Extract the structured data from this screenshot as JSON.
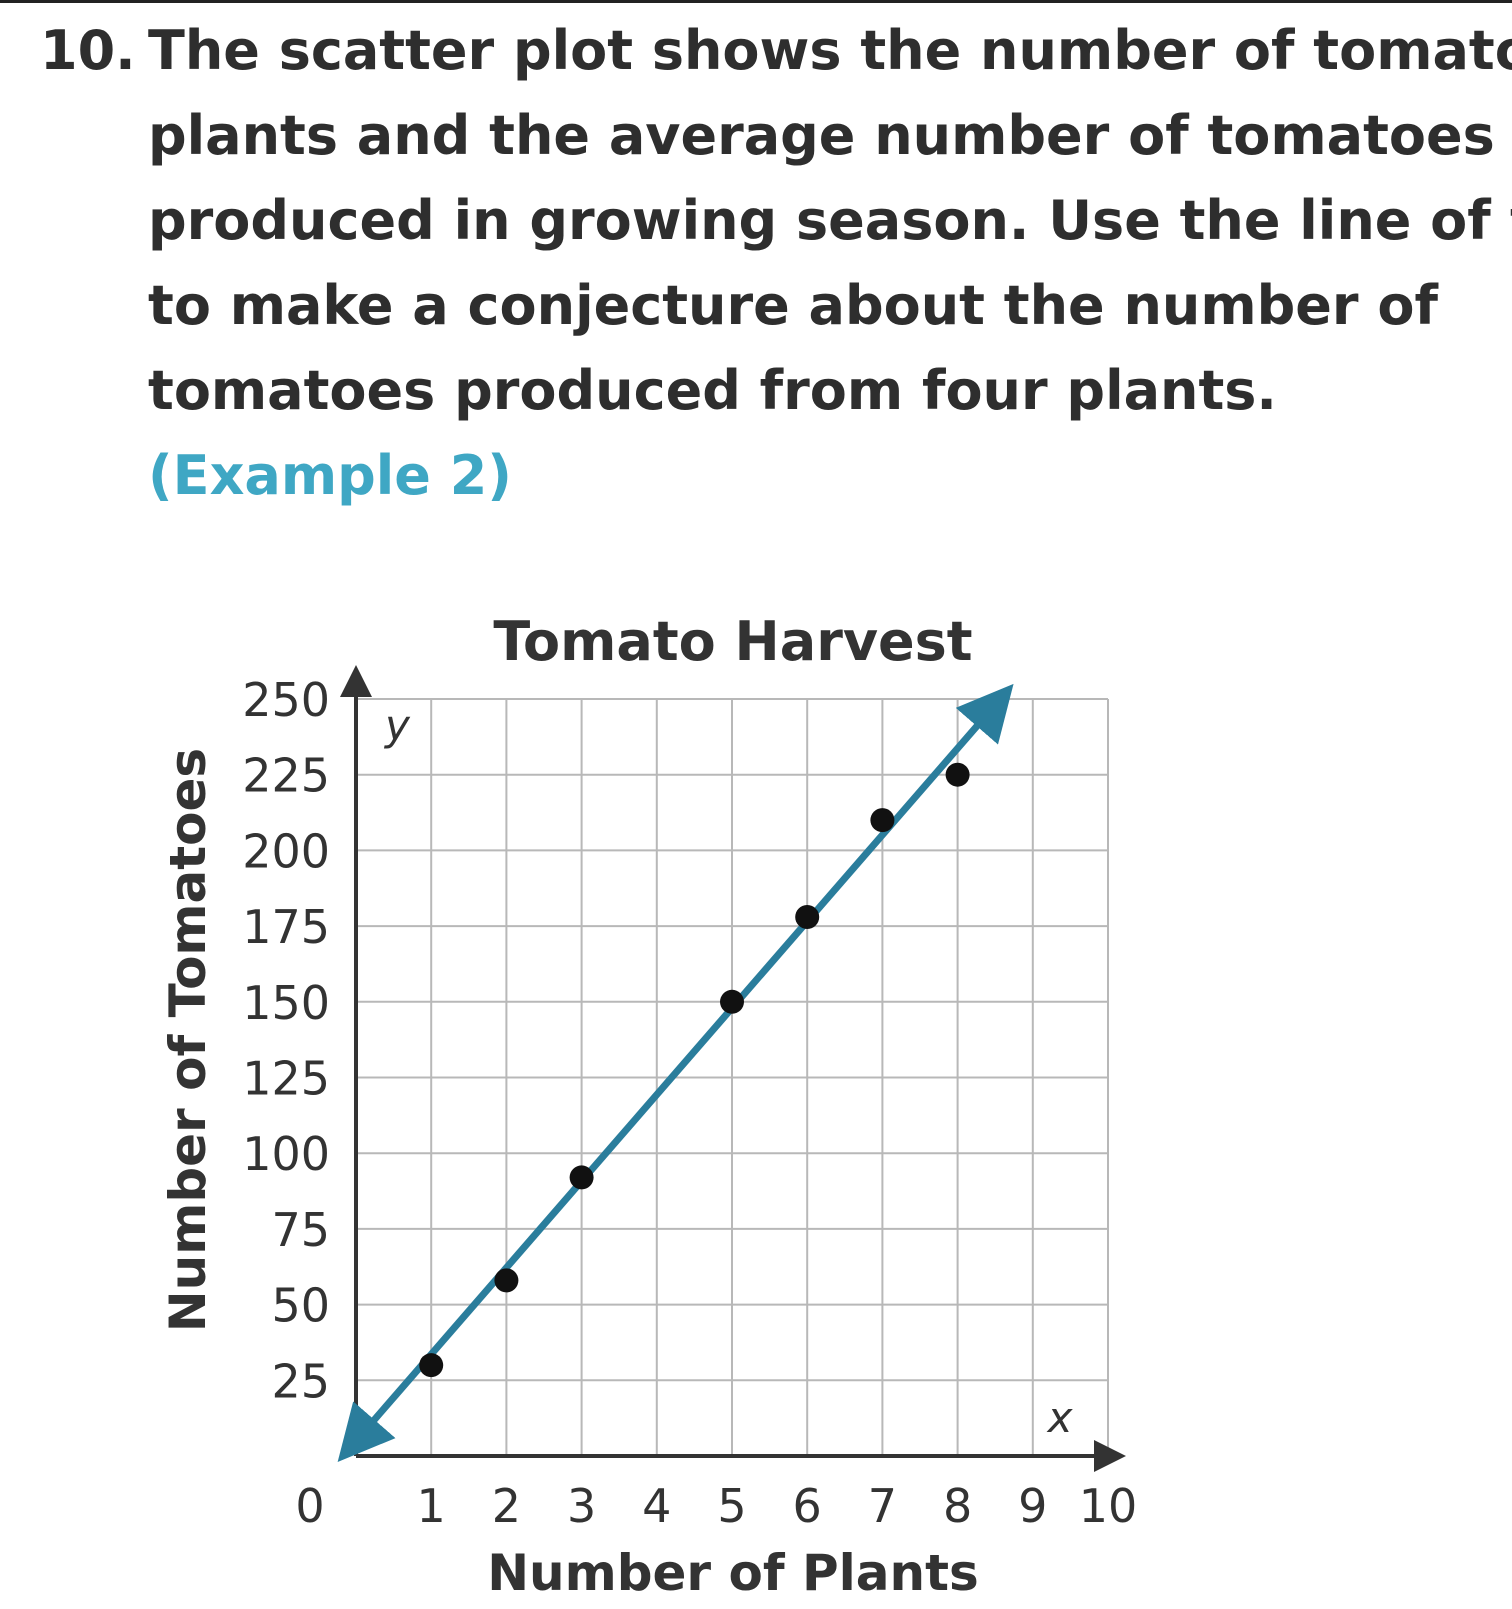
{
  "problem": {
    "number": "10.",
    "lines": [
      "The scatter plot shows the number of tomato",
      "plants and the average number of tomatoes",
      "produced in growing season. Use the line of fit",
      "to make a conjecture about the number of",
      "tomatoes produced from four plants."
    ],
    "example_ref": "(Example 2)"
  },
  "colors": {
    "fit_line": "#2a7d9c",
    "points": "#111111",
    "grid": "#b8b8b8",
    "example": "#3fa7c4"
  },
  "chart_data": {
    "type": "scatter",
    "title": "Tomato Harvest",
    "xlabel": "Number of Plants",
    "ylabel": "Number of Tomatoes",
    "x_var": "x",
    "y_var": "y",
    "xlim": [
      0,
      10
    ],
    "ylim": [
      0,
      250
    ],
    "x_ticks": [
      "0",
      "1",
      "2",
      "3",
      "4",
      "5",
      "6",
      "7",
      "8",
      "9",
      "10"
    ],
    "y_ticks": [
      "25",
      "50",
      "75",
      "100",
      "125",
      "150",
      "175",
      "200",
      "225",
      "250"
    ],
    "grid": true,
    "points": [
      {
        "x": 1,
        "y": 30
      },
      {
        "x": 2,
        "y": 58
      },
      {
        "x": 3,
        "y": 92
      },
      {
        "x": 5,
        "y": 150
      },
      {
        "x": 6,
        "y": 178
      },
      {
        "x": 7,
        "y": 210
      },
      {
        "x": 8,
        "y": 225
      }
    ],
    "fit_line": {
      "x1": 0,
      "y1": 5,
      "x2": 8.5,
      "y2": 248
    }
  }
}
